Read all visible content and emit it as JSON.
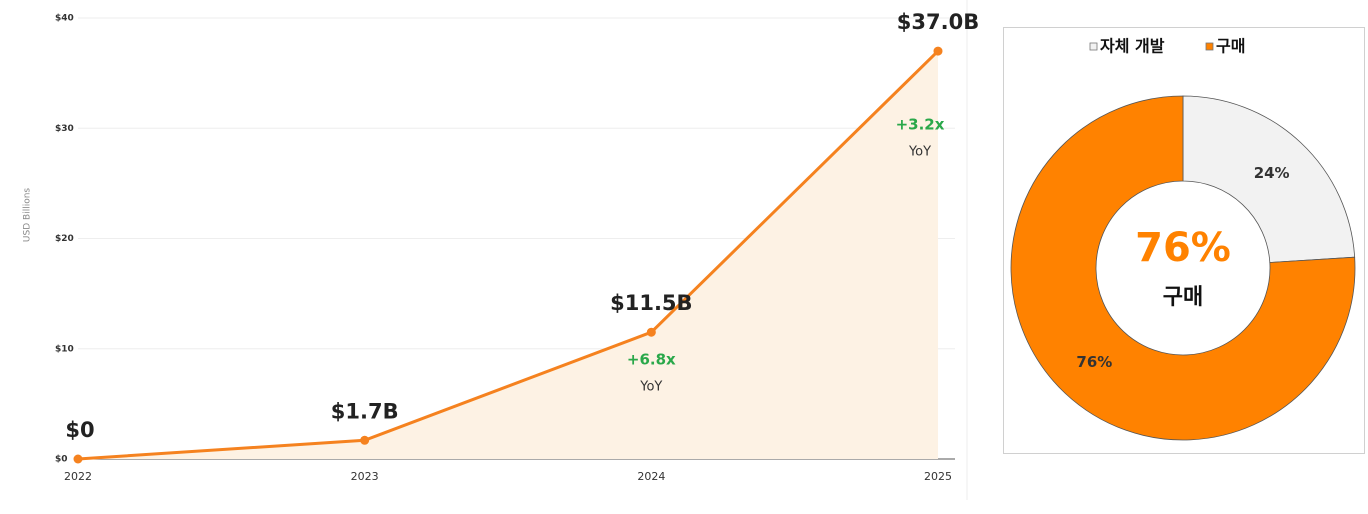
{
  "chart_data": [
    {
      "type": "area",
      "y_label": "USD Billions",
      "categories": [
        "2022",
        "2023",
        "2024",
        "2025"
      ],
      "values": [
        0,
        1.7,
        11.5,
        37.0
      ],
      "value_labels": [
        "$0",
        "$1.7B",
        "$11.5B",
        "$37.0B"
      ],
      "growth_labels": [
        null,
        null,
        "+6.8x",
        "+3.2x"
      ],
      "growth_note": "YoY",
      "color": "#f5821f",
      "fill": "#fdf2e4",
      "growth_color": "#2aa84a",
      "ylim": [
        0,
        40
      ],
      "yticks": [
        {
          "value": 0,
          "label": "$0"
        },
        {
          "value": 10,
          "label": "$10"
        },
        {
          "value": 20,
          "label": "$20"
        },
        {
          "value": 30,
          "label": "$30"
        },
        {
          "value": 40,
          "label": "$40"
        }
      ],
      "grid": true
    },
    {
      "type": "donut",
      "categories": [
        "자체 개발",
        "구매"
      ],
      "values": [
        24,
        76
      ],
      "value_labels": [
        "24%",
        "76%"
      ],
      "colors": [
        "#f2f2f2",
        "#ff8200"
      ],
      "legend": "top"
    }
  ]
}
